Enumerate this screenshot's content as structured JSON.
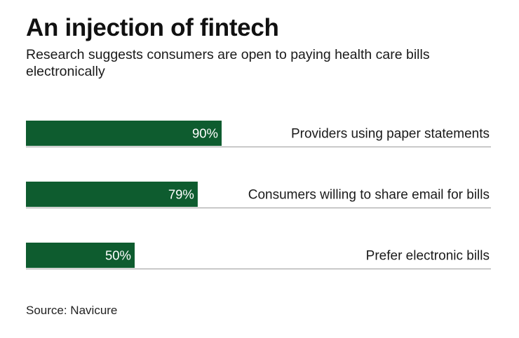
{
  "header": {
    "title": "An injection of fintech",
    "subtitle": "Research suggests consumers are open to paying health care bills electronically"
  },
  "footer": {
    "source": "Source: Navicure"
  },
  "colors": {
    "bar": "#0e5c2f",
    "bar_label": "#ffffff",
    "baseline": "#9a9a9a",
    "category_text": "#1a1a1a"
  },
  "chart_data": {
    "type": "bar",
    "orientation": "horizontal",
    "title": "An injection of fintech",
    "subtitle": "Research suggests consumers are open to paying health care bills electronically",
    "categories": [
      "Providers using paper statements",
      "Consumers willing to share email for bills",
      "Prefer electronic bills"
    ],
    "values": [
      90,
      79,
      50
    ],
    "value_labels": [
      "90%",
      "79%",
      "50%"
    ],
    "unit": "%",
    "xlim": [
      0,
      100
    ],
    "xlabel": "",
    "ylabel": "",
    "grid": false,
    "legend": "none",
    "source": "Source: Navicure"
  }
}
